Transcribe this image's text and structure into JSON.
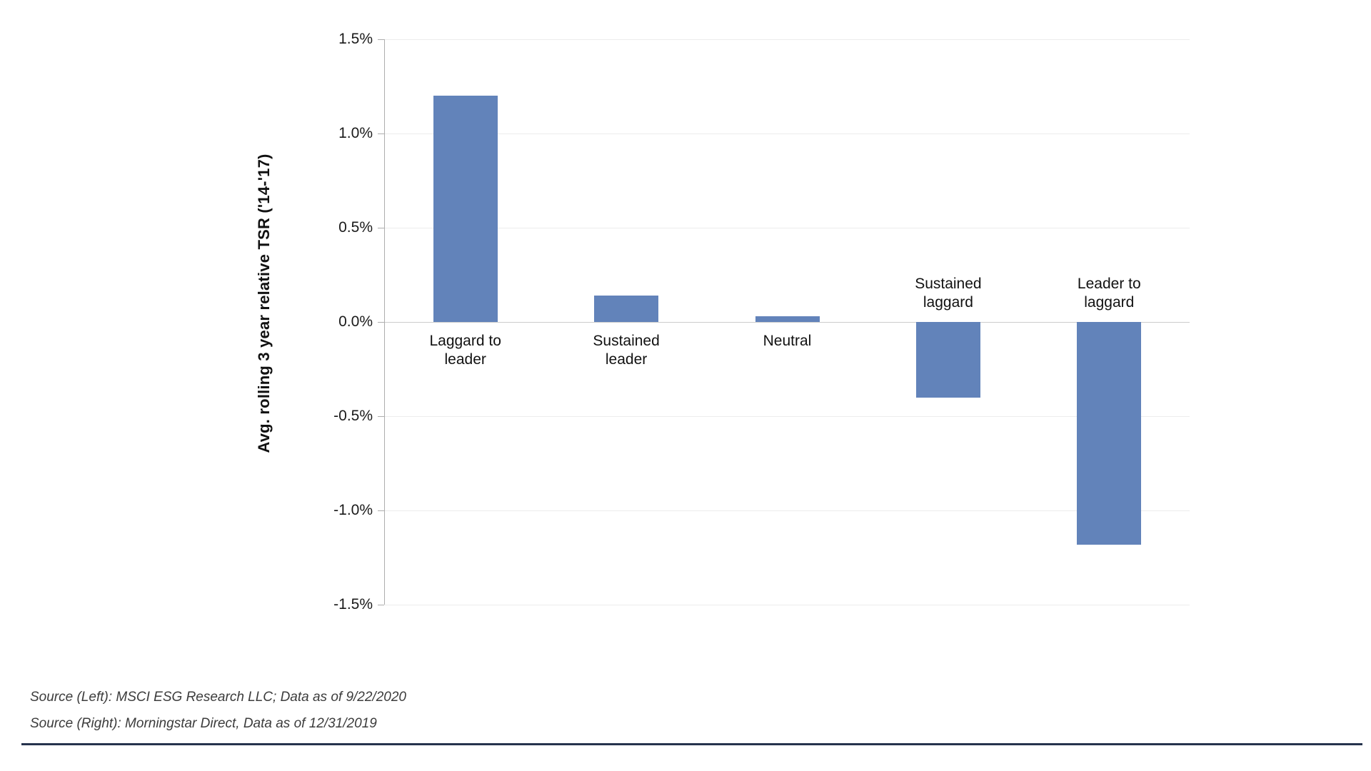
{
  "chart_data": {
    "type": "bar",
    "title": "",
    "categories": [
      "Laggard to leader",
      "Sustained leader",
      "Neutral",
      "Sustained laggard",
      "Leader to laggard"
    ],
    "values": [
      1.2,
      0.14,
      0.03,
      -0.4,
      -1.18
    ],
    "xlabel": "",
    "ylabel": "Avg. rolling 3 year relative TSR ('14-'17)",
    "ylim": [
      -1.5,
      1.5
    ],
    "ytick_step": 0.5,
    "ytick_labels": [
      "1.5%",
      "1.0%",
      "0.5%",
      "0.0%",
      "-0.5%",
      "-1.0%",
      "-1.5%"
    ],
    "bar_color": "#6283ba",
    "grid": true,
    "legend": "none"
  },
  "footer": {
    "source_left": "Source (Left): MSCI ESG Research LLC; Data as of 9/22/2020",
    "source_right": "Source (Right): Morningstar Direct, Data as of 12/31/2019"
  }
}
